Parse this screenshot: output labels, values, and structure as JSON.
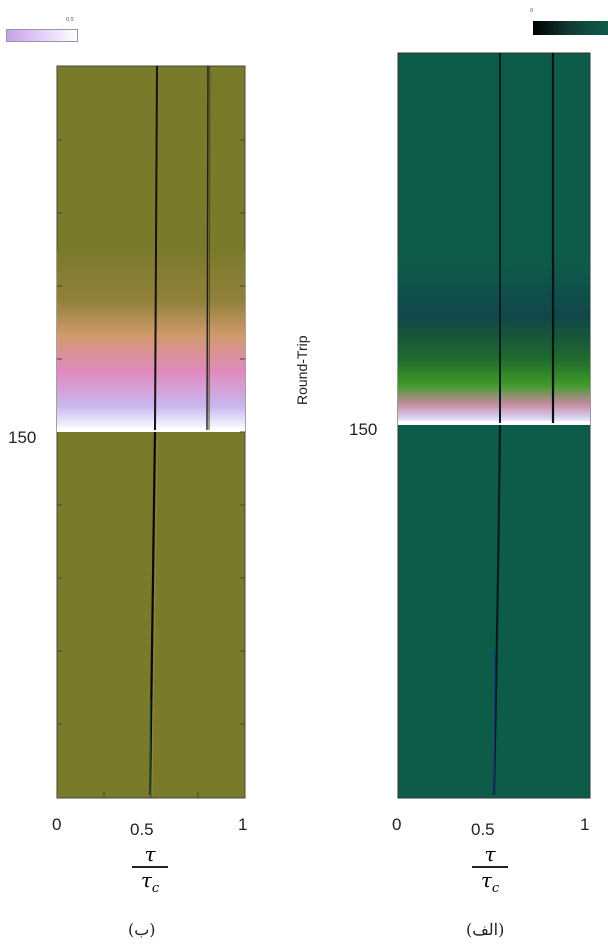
{
  "figure": {
    "right_caption": "(الف)",
    "left_caption": "(ب)",
    "ylabel": "Round-Trip",
    "x_fraction_num": "τ",
    "x_fraction_den": "τ",
    "x_fraction_den_sub": "c"
  },
  "chart_data": [
    {
      "id": "left",
      "type": "heatmap",
      "caption": "(ب)",
      "xlabel": "τ / τc",
      "x_ticks": [
        "0",
        "0.5",
        "1"
      ],
      "xlim": [
        0,
        1
      ],
      "y_ticks": [
        "150"
      ],
      "y_tick_values": [
        150
      ],
      "colorbar_tick": "0.5",
      "colorbar_colors": [
        "#c8a0f0",
        "#ffffff"
      ],
      "background_color": "#7a7a2b",
      "flash_colors": [
        "#7a7a2b",
        "#d19a6e",
        "#e08ac0",
        "#c8b8f0",
        "#ffffff"
      ],
      "features": [
        {
          "kind": "dark_line_before",
          "tau": 0.58
        },
        {
          "kind": "dark_line_before",
          "tau": 0.8
        },
        {
          "kind": "drifting_dark_line_after",
          "tau_start": 0.57,
          "tau_end": 0.5
        }
      ]
    },
    {
      "id": "right",
      "type": "heatmap",
      "caption": "(الف)",
      "xlabel": "τ / τc",
      "ylabel": "Round-Trip",
      "x_ticks": [
        "0",
        "0.5",
        "1"
      ],
      "xlim": [
        0,
        1
      ],
      "y_ticks": [
        "150"
      ],
      "y_tick_values": [
        150
      ],
      "colorbar_tick": "0",
      "colorbar_colors": [
        "#000000",
        "#0d5c4a"
      ],
      "background_color": "#0d5c4a",
      "flash_colors": [
        "#0d5c4a",
        "#2f8a2f",
        "#c88aa0",
        "#d6d0f0",
        "#ffffff"
      ],
      "features": [
        {
          "kind": "dark_line_before",
          "tau": 0.55
        },
        {
          "kind": "dark_line_before",
          "tau": 0.8
        },
        {
          "kind": "drifting_dark_line_after",
          "tau_start": 0.55,
          "tau_end": 0.52
        }
      ]
    }
  ]
}
